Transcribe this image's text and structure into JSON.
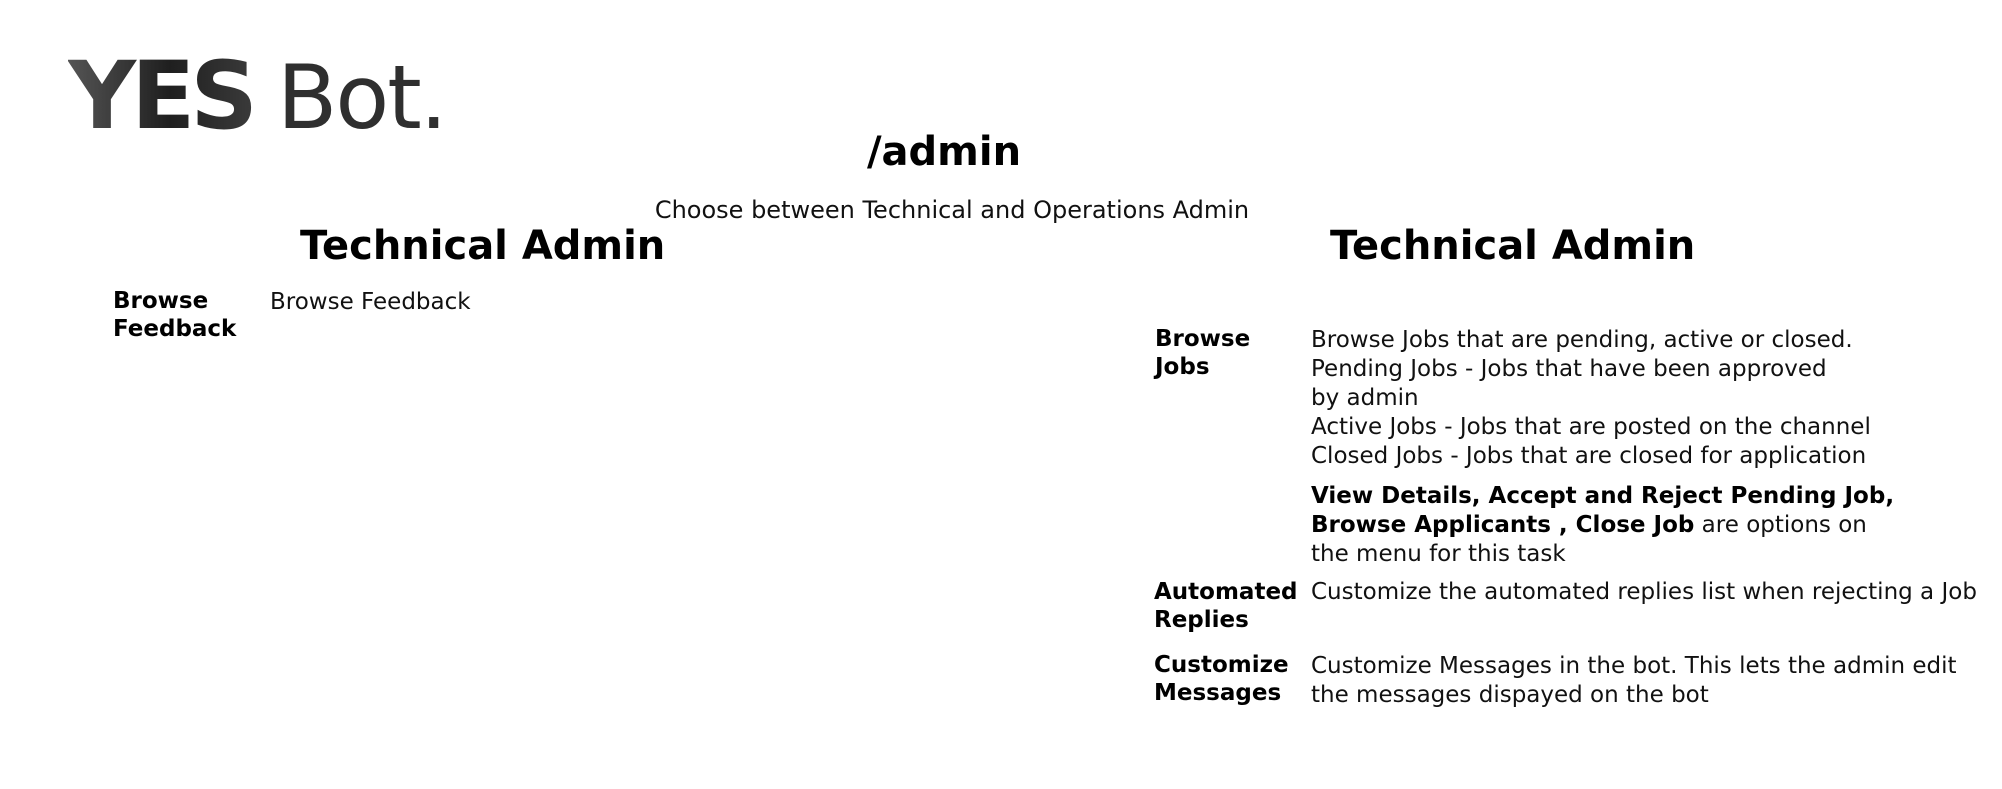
{
  "logo": {
    "bold_text": "YES",
    "light_text": "Bot."
  },
  "page": {
    "title": "/admin",
    "subtitle": "Choose between Technical and Operations Admin"
  },
  "left_section": {
    "title": "Technical Admin",
    "items": [
      {
        "label_line1": "Browse",
        "label_line2": "Feedback",
        "description": "Browse Feedback"
      }
    ]
  },
  "right_section": {
    "title": "Technical Admin",
    "items": [
      {
        "label_line1": "Browse",
        "label_line2": "Jobs",
        "description_lines": [
          "Browse Jobs that are pending, active or closed.",
          "Pending Jobs - Jobs that have been approved",
          "by admin",
          "Active Jobs - Jobs that are posted on the channel",
          "Closed Jobs - Jobs that are closed for application"
        ],
        "options_bold_line1": "View Details, Accept and Reject Pending Job,",
        "options_bold_line2": "Browse Applicants , Close Job",
        "options_suffix": " are options on",
        "options_line3": "the menu for this task"
      },
      {
        "label_line1": "Automated",
        "label_line2": "Replies",
        "description": "Customize the automated replies list when rejecting a Job"
      },
      {
        "label_line1": "Customize",
        "label_line2": "Messages",
        "description_line1": "Customize Messages in the bot. This lets the admin edit",
        "description_line2": "the messages dispayed on the bot"
      }
    ]
  }
}
